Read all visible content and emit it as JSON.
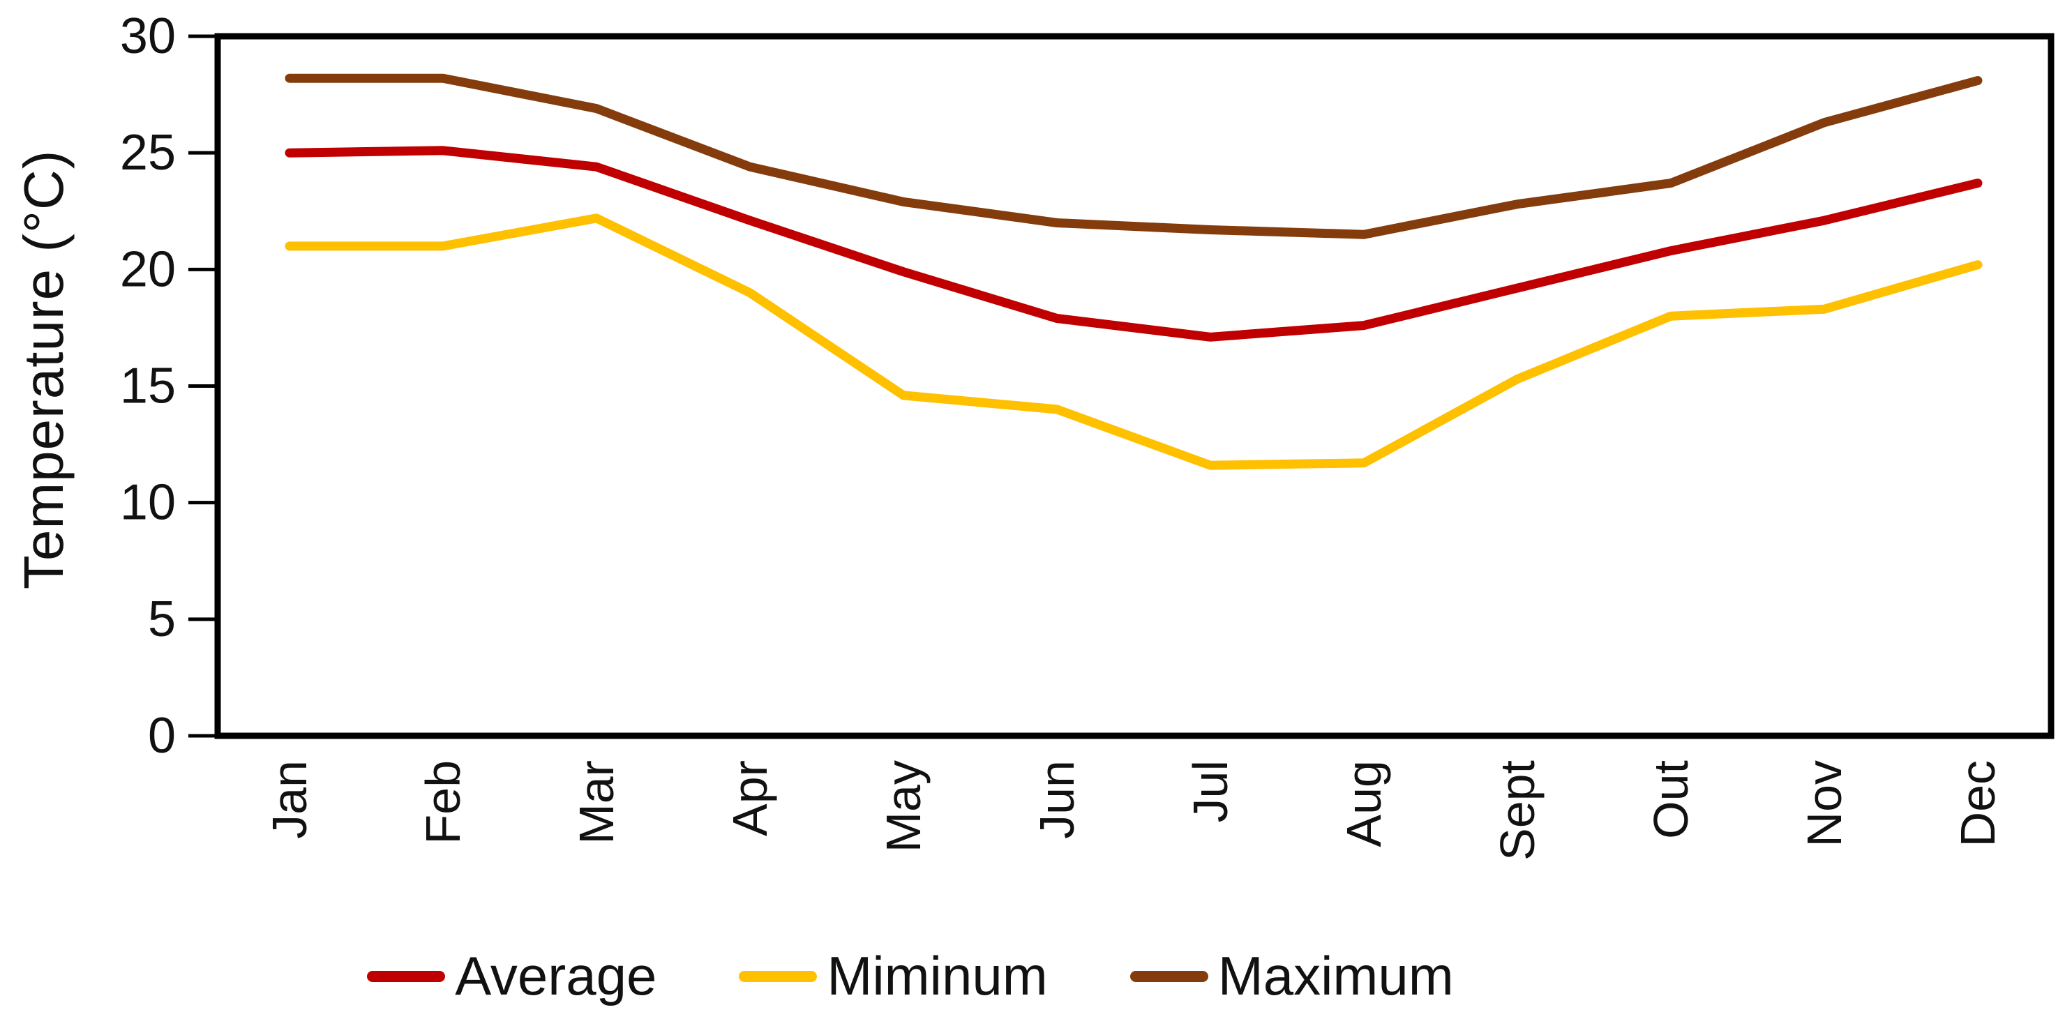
{
  "chart_data": {
    "type": "line",
    "title": "",
    "xlabel": "",
    "ylabel": "Temperature (°C)",
    "ylim": [
      0,
      30
    ],
    "yticks": [
      0,
      5,
      10,
      15,
      20,
      25,
      30
    ],
    "grid": false,
    "legend_position": "bottom",
    "categories": [
      "Jan",
      "Feb",
      "Mar",
      "Apr",
      "May",
      "Jun",
      "Jul",
      "Aug",
      "Sept",
      "Out",
      "Nov",
      "Dec"
    ],
    "series": [
      {
        "name": "Average",
        "color": "#C00000",
        "values": [
          25.0,
          25.1,
          24.4,
          22.1,
          19.9,
          17.9,
          17.1,
          17.6,
          19.2,
          20.8,
          22.1,
          23.7
        ]
      },
      {
        "name": "Miminum",
        "color": "#FFC000",
        "values": [
          21.0,
          21.0,
          22.2,
          19.0,
          14.6,
          14.0,
          11.6,
          11.7,
          15.3,
          18.0,
          18.3,
          20.2
        ]
      },
      {
        "name": "Maximum",
        "color": "#843C0C",
        "values": [
          28.2,
          28.2,
          26.9,
          24.4,
          22.9,
          22.0,
          21.7,
          21.5,
          22.8,
          23.7,
          26.3,
          28.1
        ]
      }
    ],
    "axis_color": "#000000",
    "background": "#ffffff"
  }
}
